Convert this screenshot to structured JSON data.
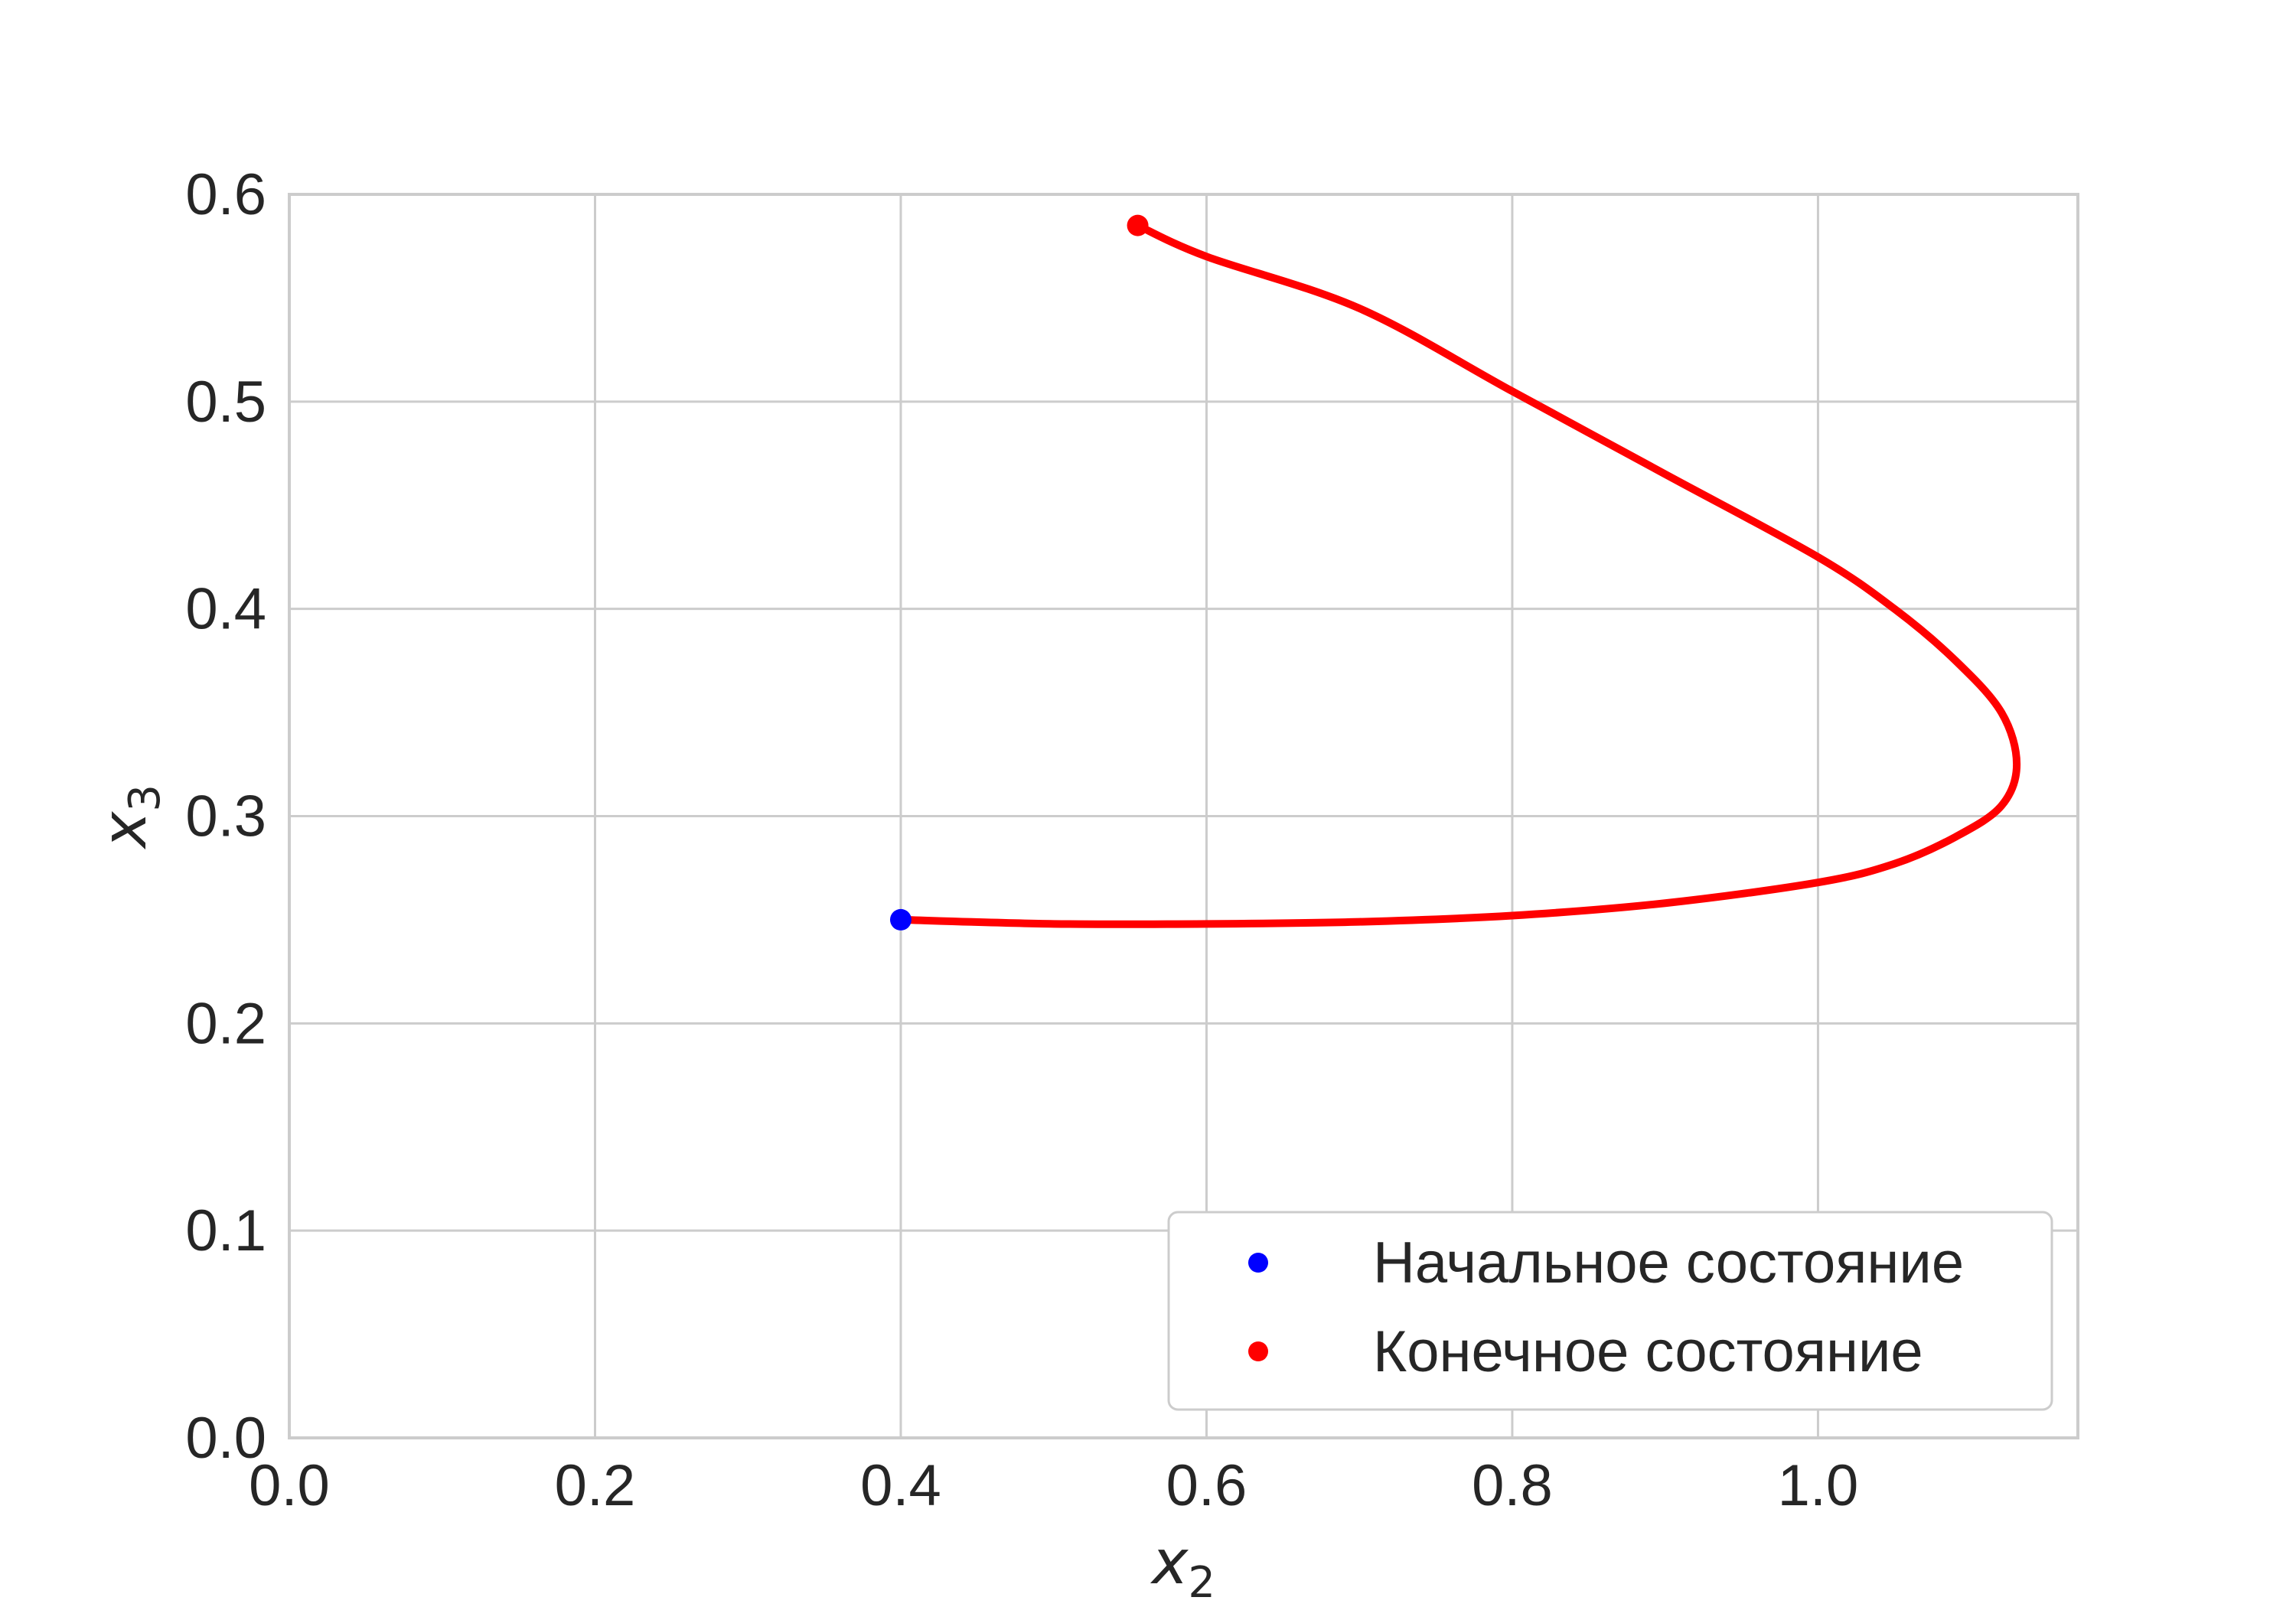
{
  "chart_data": {
    "type": "line",
    "xlabel_main": "x",
    "xlabel_sub": "2",
    "ylabel_main": "x",
    "ylabel_sub": "3",
    "xlim": [
      0,
      1.17
    ],
    "ylim": [
      0,
      0.6
    ],
    "xticks": [
      "0.0",
      "0.2",
      "0.4",
      "0.6",
      "0.8",
      "1.0"
    ],
    "yticks": [
      "0.0",
      "0.1",
      "0.2",
      "0.3",
      "0.4",
      "0.5",
      "0.6"
    ],
    "grid": true,
    "legend_position": "lower-right",
    "series": [
      {
        "color": "#ff0000",
        "x": [
          0.4,
          0.5,
          0.6,
          0.7,
          0.8,
          0.9,
          1.0,
          1.05,
          1.09,
          1.12,
          1.13,
          1.12,
          1.09,
          1.05,
          1.0,
          0.9,
          0.8,
          0.7,
          0.6,
          0.555
        ],
        "y": [
          0.25,
          0.248,
          0.248,
          0.249,
          0.252,
          0.258,
          0.268,
          0.277,
          0.29,
          0.305,
          0.325,
          0.35,
          0.375,
          0.4,
          0.425,
          0.465,
          0.505,
          0.545,
          0.57,
          0.585
        ]
      }
    ],
    "points": [
      {
        "name": "Начальное состояние",
        "x": 0.4,
        "y": 0.25,
        "color": "#0000ff"
      },
      {
        "name": "Конечное состояние",
        "x": 0.555,
        "y": 0.585,
        "color": "#ff0000"
      }
    ]
  }
}
